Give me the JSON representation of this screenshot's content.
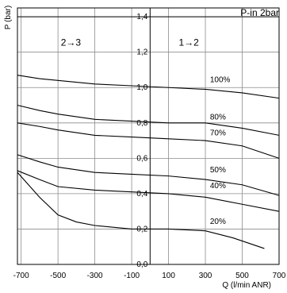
{
  "chart_data": {
    "type": "line",
    "title": "P-in 2bar",
    "xlabel": "Q (l/min ANR)",
    "ylabel": "P (bar)",
    "xlim": [
      -720,
      700
    ],
    "ylim": [
      0,
      1.45
    ],
    "x_ticks": [
      "-700",
      "-500",
      "-300",
      "-100",
      "100",
      "300",
      "500",
      "700"
    ],
    "x_tick_values": [
      -700,
      -500,
      -300,
      -100,
      100,
      300,
      500,
      700
    ],
    "y_ticks": [
      "0,0",
      "0,2",
      "0,4",
      "0,6",
      "0,8",
      "1,0",
      "1,2",
      "1,4"
    ],
    "y_tick_values": [
      0,
      0.2,
      0.4,
      0.6,
      0.8,
      1.0,
      1.2,
      1.4
    ],
    "grid": true,
    "annotations": [
      {
        "text": "2→3",
        "x": -430,
        "y": 1.25
      },
      {
        "text": "1→2",
        "x": 210,
        "y": 1.25
      }
    ],
    "series": [
      {
        "name": "100%",
        "label_pos": [
          325,
          1.03
        ],
        "points": [
          [
            -720,
            1.07
          ],
          [
            -600,
            1.05
          ],
          [
            -500,
            1.04
          ],
          [
            -300,
            1.02
          ],
          [
            -100,
            1.01
          ],
          [
            100,
            1.0
          ],
          [
            300,
            0.99
          ],
          [
            500,
            0.97
          ],
          [
            700,
            0.94
          ]
        ]
      },
      {
        "name": "80%",
        "label_pos": [
          325,
          0.82
        ],
        "points": [
          [
            -720,
            0.9
          ],
          [
            -600,
            0.87
          ],
          [
            -500,
            0.85
          ],
          [
            -300,
            0.82
          ],
          [
            -100,
            0.81
          ],
          [
            100,
            0.8
          ],
          [
            300,
            0.8
          ],
          [
            500,
            0.77
          ],
          [
            700,
            0.73
          ]
        ]
      },
      {
        "name": "70%",
        "label_pos": [
          325,
          0.73
        ],
        "points": [
          [
            -720,
            0.8
          ],
          [
            -600,
            0.78
          ],
          [
            -500,
            0.76
          ],
          [
            -300,
            0.73
          ],
          [
            -100,
            0.72
          ],
          [
            100,
            0.71
          ],
          [
            300,
            0.7
          ],
          [
            500,
            0.67
          ],
          [
            700,
            0.6
          ]
        ]
      },
      {
        "name": "50%",
        "label_pos": [
          325,
          0.52
        ],
        "points": [
          [
            -720,
            0.62
          ],
          [
            -600,
            0.58
          ],
          [
            -500,
            0.55
          ],
          [
            -300,
            0.52
          ],
          [
            -100,
            0.51
          ],
          [
            100,
            0.5
          ],
          [
            300,
            0.48
          ],
          [
            500,
            0.45
          ],
          [
            700,
            0.39
          ]
        ]
      },
      {
        "name": "40%",
        "label_pos": [
          325,
          0.43
        ],
        "points": [
          [
            -720,
            0.53
          ],
          [
            -600,
            0.48
          ],
          [
            -500,
            0.44
          ],
          [
            -300,
            0.42
          ],
          [
            -100,
            0.41
          ],
          [
            100,
            0.4
          ],
          [
            300,
            0.38
          ],
          [
            500,
            0.34
          ],
          [
            700,
            0.3
          ]
        ]
      },
      {
        "name": "20%",
        "label_pos": [
          325,
          0.23
        ],
        "points": [
          [
            -720,
            0.52
          ],
          [
            -600,
            0.38
          ],
          [
            -500,
            0.28
          ],
          [
            -400,
            0.24
          ],
          [
            -300,
            0.22
          ],
          [
            -100,
            0.2
          ],
          [
            100,
            0.2
          ],
          [
            300,
            0.19
          ],
          [
            450,
            0.15
          ],
          [
            620,
            0.09
          ]
        ]
      }
    ]
  }
}
